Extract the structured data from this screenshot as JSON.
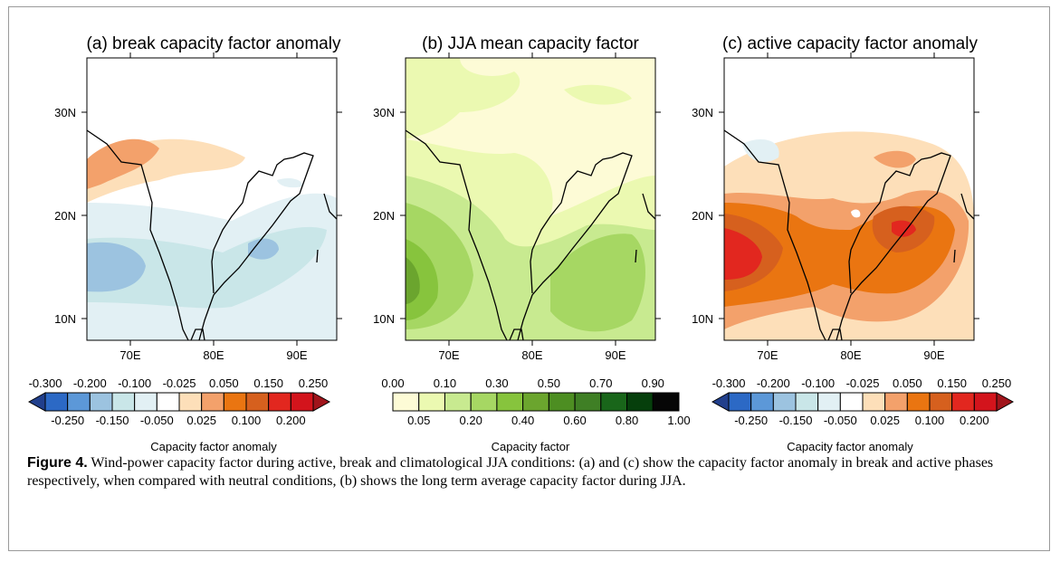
{
  "panels": [
    {
      "id": "a",
      "title": "(a) break capacity factor anomaly",
      "lat_labels": [
        "30N",
        "20N",
        "10N"
      ],
      "lon_labels": [
        "70E",
        "80E",
        "90E"
      ],
      "colorbar": {
        "upper_labels": [
          "-0.300",
          "-0.200",
          "-0.100",
          "-0.025",
          "0.050",
          "0.150",
          "0.250"
        ],
        "lower_labels": [
          "-0.250",
          "-0.150",
          "-0.050",
          "0.025",
          "0.100",
          "0.200"
        ],
        "label": "Capacity factor anomaly",
        "colors": [
          "#213f8c",
          "#2c69c5",
          "#5c98d8",
          "#9cc3e0",
          "#c9e6e8",
          "#e2f0f4",
          "#ffffff",
          "#fddfb9",
          "#f3a16b",
          "#ea7511",
          "#d6601e",
          "#e2271f",
          "#d3141c",
          "#a0141b"
        ]
      }
    },
    {
      "id": "b",
      "title": "(b) JJA mean capacity factor",
      "lat_labels": [
        "30N",
        "20N",
        "10N"
      ],
      "lon_labels": [
        "70E",
        "80E",
        "90E"
      ],
      "colorbar": {
        "upper_labels": [
          "0.00",
          "0.10",
          "0.30",
          "0.50",
          "0.70",
          "0.90"
        ],
        "lower_labels": [
          "0.05",
          "0.20",
          "0.40",
          "0.60",
          "0.80",
          "1.00"
        ],
        "label": "Capacity factor",
        "colors": [
          "#fdfbd6",
          "#ebf9b1",
          "#c8ea90",
          "#a6d763",
          "#87c43d",
          "#6ba52e",
          "#4d8e22",
          "#3f7f25",
          "#19661a",
          "#063f0c",
          "#060606"
        ]
      }
    },
    {
      "id": "c",
      "title": "(c) active capacity factor anomaly",
      "lat_labels": [
        "30N",
        "20N",
        "10N"
      ],
      "lon_labels": [
        "70E",
        "80E",
        "90E"
      ],
      "colorbar": {
        "upper_labels": [
          "-0.300",
          "-0.200",
          "-0.100",
          "-0.025",
          "0.050",
          "0.150",
          "0.250"
        ],
        "lower_labels": [
          "-0.250",
          "-0.150",
          "-0.050",
          "0.025",
          "0.100",
          "0.200"
        ],
        "label": "Capacity factor anomaly",
        "colors": [
          "#213f8c",
          "#2c69c5",
          "#5c98d8",
          "#9cc3e0",
          "#c9e6e8",
          "#e2f0f4",
          "#ffffff",
          "#fddfb9",
          "#f3a16b",
          "#ea7511",
          "#d6601e",
          "#e2271f",
          "#d3141c",
          "#a0141b"
        ]
      }
    }
  ],
  "caption": {
    "label": "Figure 4.",
    "text": " Wind-power capacity factor during active, break and climatological JJA conditions: (a) and (c) show the capacity factor anomaly in break and active phases respectively, when compared with neutral conditions, (b) shows the long term average capacity factor during JJA."
  }
}
